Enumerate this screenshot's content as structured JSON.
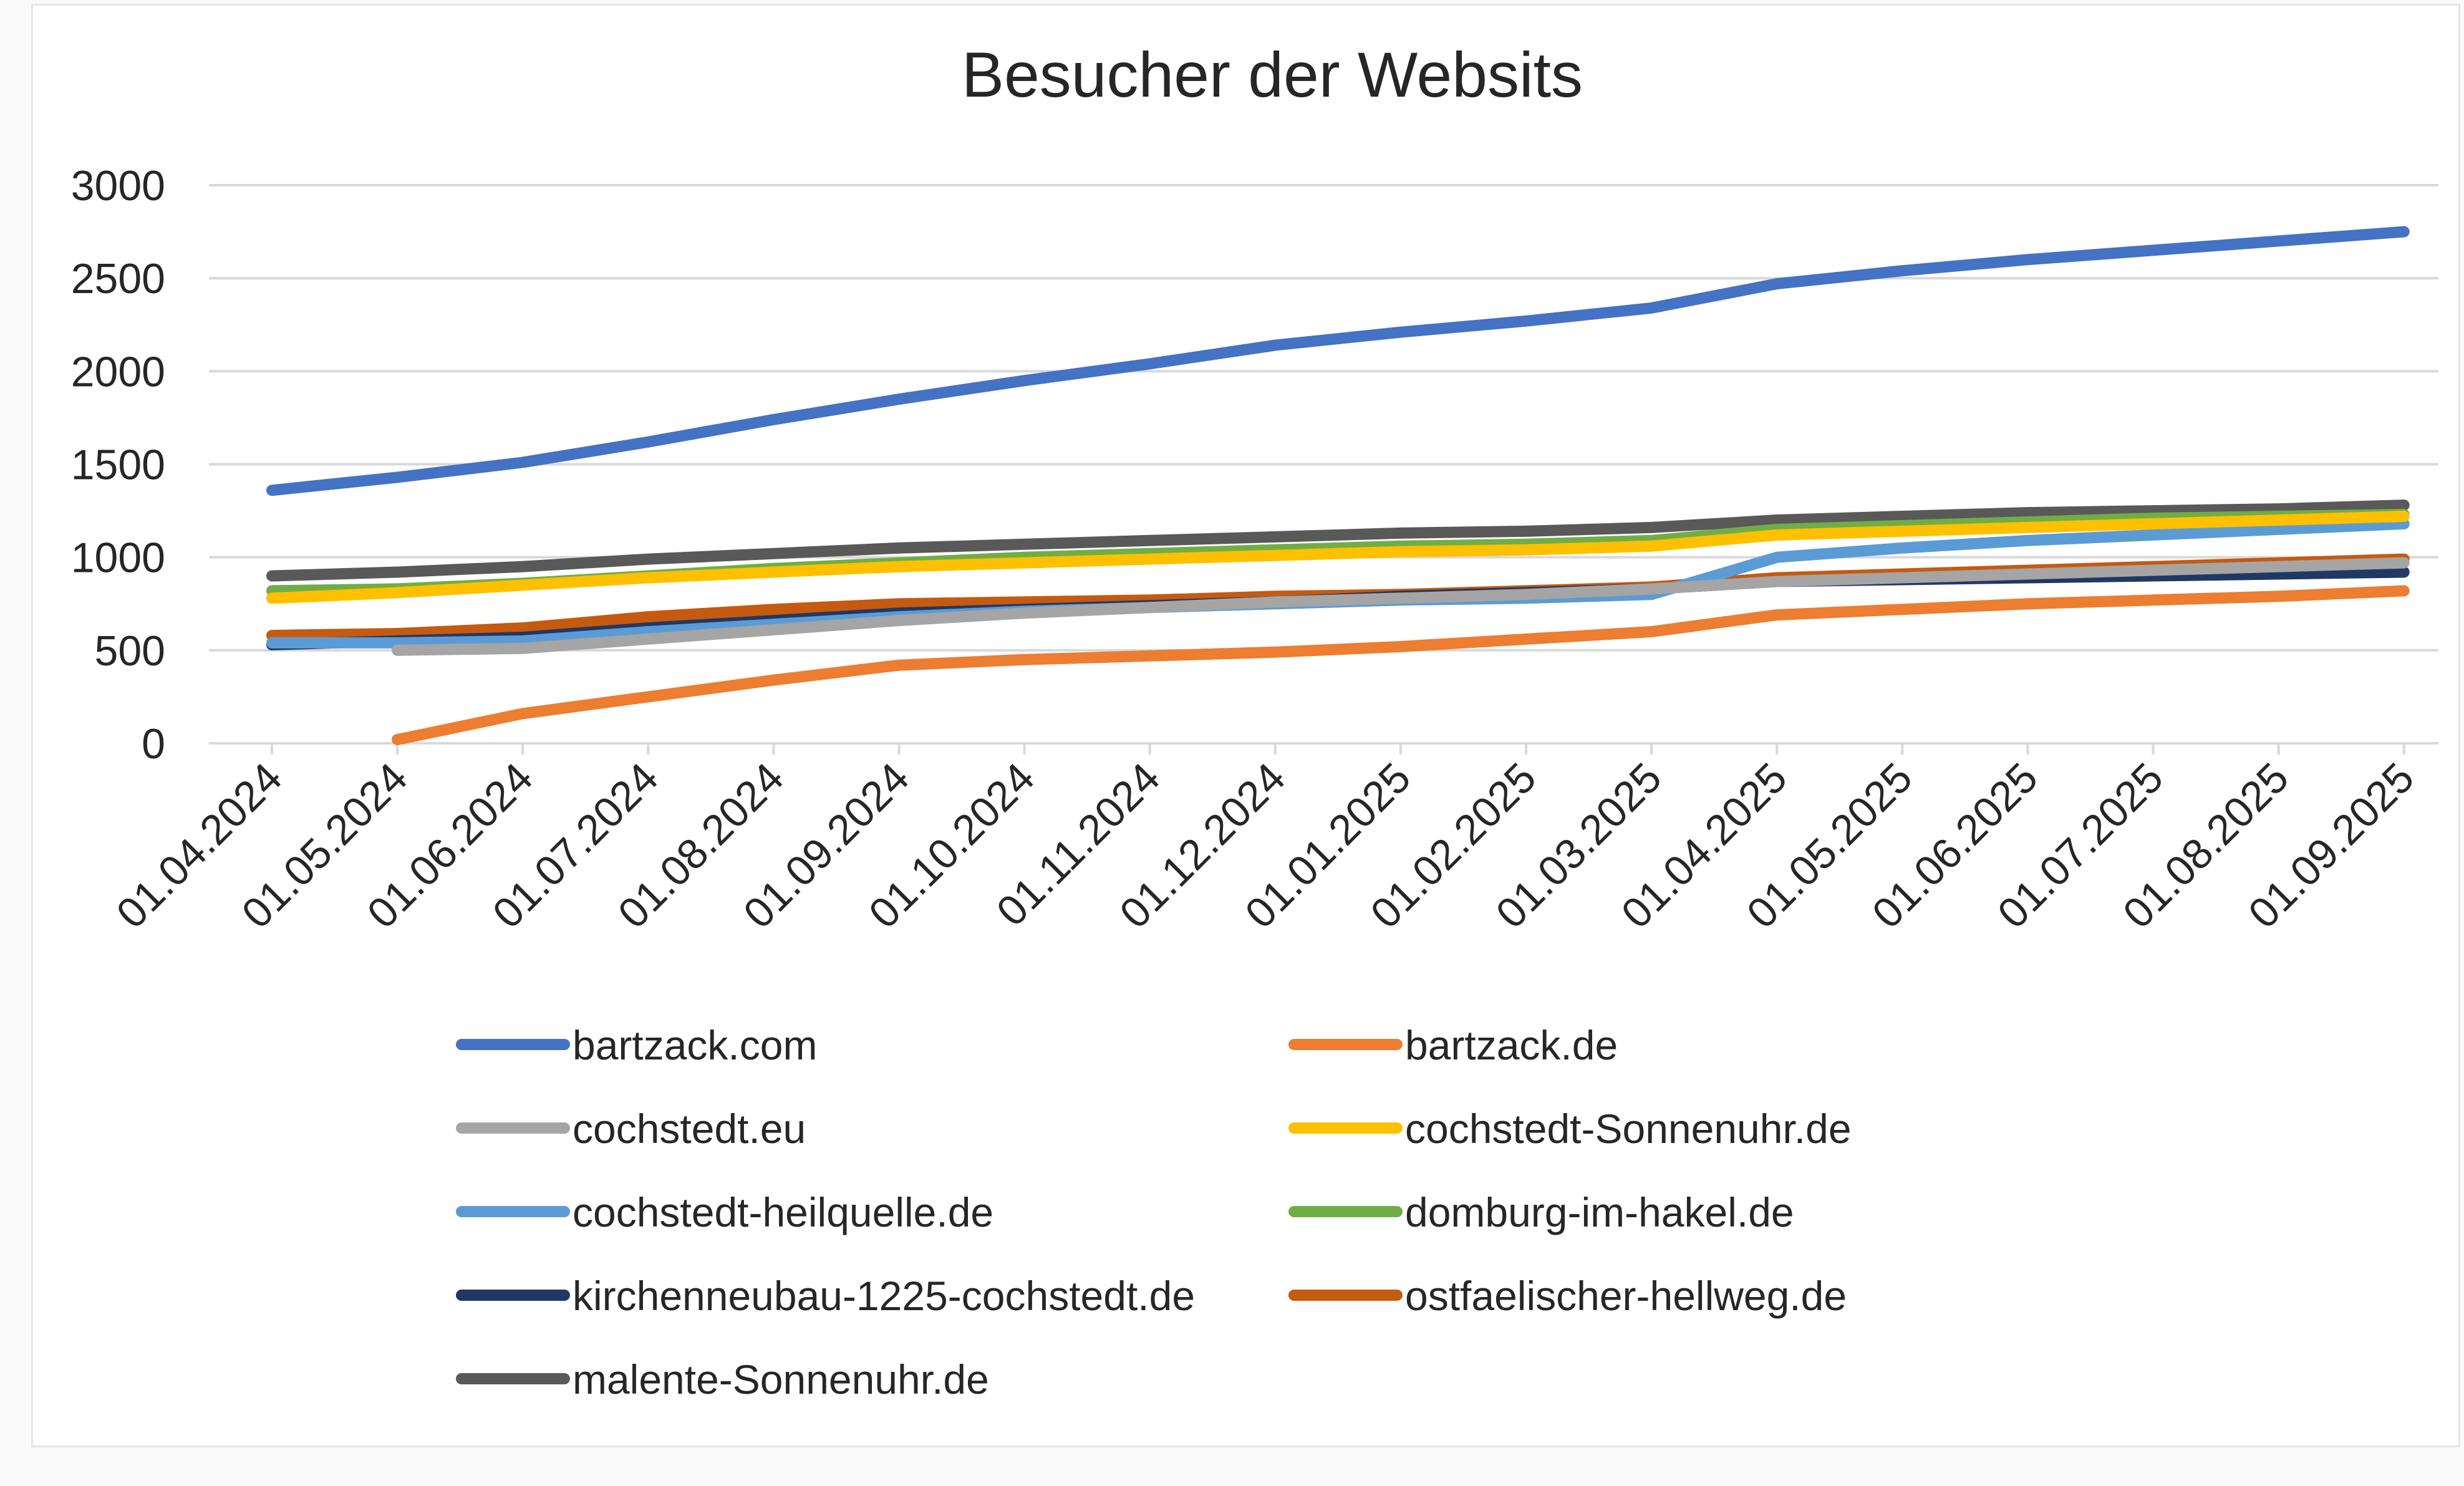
{
  "chart_data": {
    "type": "line",
    "title": "Besucher der Websits",
    "xlabel": "",
    "ylabel": "",
    "ylim": [
      0,
      3000
    ],
    "yticks": [
      0,
      500,
      1000,
      1500,
      2000,
      2500,
      3000
    ],
    "grid": true,
    "legend_position": "bottom",
    "categories": [
      "01.04.2024",
      "01.05.2024",
      "01.06.2024",
      "01.07.2024",
      "01.08.2024",
      "01.09.2024",
      "01.10.2024",
      "01.11.2024",
      "01.12.2024",
      "01.01.2025",
      "01.02.2025",
      "01.03.2025",
      "01.04.2025",
      "01.05.2025",
      "01.06.2025",
      "01.07.2025",
      "01.08.2025",
      "01.09.2025"
    ],
    "series": [
      {
        "name": "bartzack.com",
        "color": "#4472c4",
        "values": [
          1360,
          1430,
          1510,
          1620,
          1740,
          1850,
          1950,
          2040,
          2140,
          2210,
          2270,
          2340,
          2470,
          2540,
          2600,
          2650,
          2700,
          2750
        ]
      },
      {
        "name": "bartzack.de",
        "color": "#ed7d31",
        "values": [
          null,
          20,
          160,
          250,
          340,
          420,
          450,
          470,
          490,
          520,
          560,
          600,
          690,
          720,
          750,
          770,
          790,
          820
        ]
      },
      {
        "name": "cochstedt.eu",
        "color": "#a5a5a5",
        "values": [
          null,
          500,
          510,
          560,
          610,
          660,
          700,
          730,
          760,
          780,
          800,
          830,
          870,
          890,
          910,
          930,
          950,
          970
        ]
      },
      {
        "name": "cochstedt-Sonnenuhr.de",
        "color": "#ffc000",
        "values": [
          780,
          810,
          850,
          890,
          920,
          950,
          970,
          990,
          1010,
          1030,
          1040,
          1060,
          1120,
          1140,
          1160,
          1180,
          1200,
          1220
        ]
      },
      {
        "name": "cochstedt-heilquelle.de",
        "color": "#5b9bd5",
        "values": [
          540,
          540,
          550,
          600,
          640,
          680,
          710,
          730,
          750,
          770,
          780,
          800,
          1000,
          1050,
          1090,
          1120,
          1150,
          1180
        ]
      },
      {
        "name": "domburg-im-hakel.de",
        "color": "#70ad47",
        "values": [
          820,
          830,
          860,
          900,
          940,
          970,
          1000,
          1020,
          1040,
          1060,
          1070,
          1090,
          1150,
          1170,
          1190,
          1210,
          1220,
          1230
        ]
      },
      {
        "name": "kirchenneubau-1225-cochstedt.de",
        "color": "#203864",
        "values": [
          530,
          550,
          570,
          620,
          660,
          700,
          720,
          740,
          760,
          790,
          810,
          830,
          870,
          880,
          890,
          900,
          910,
          920
        ]
      },
      {
        "name": "ostfaelischer-hellweg.de",
        "color": "#c55a11",
        "values": [
          580,
          590,
          620,
          680,
          720,
          750,
          760,
          770,
          790,
          800,
          820,
          840,
          890,
          910,
          930,
          950,
          970,
          990
        ]
      },
      {
        "name": "malente-Sonnenuhr.de",
        "color": "#595959",
        "values": [
          900,
          920,
          950,
          990,
          1020,
          1050,
          1070,
          1090,
          1110,
          1130,
          1140,
          1160,
          1200,
          1220,
          1240,
          1250,
          1260,
          1280
        ]
      }
    ]
  }
}
